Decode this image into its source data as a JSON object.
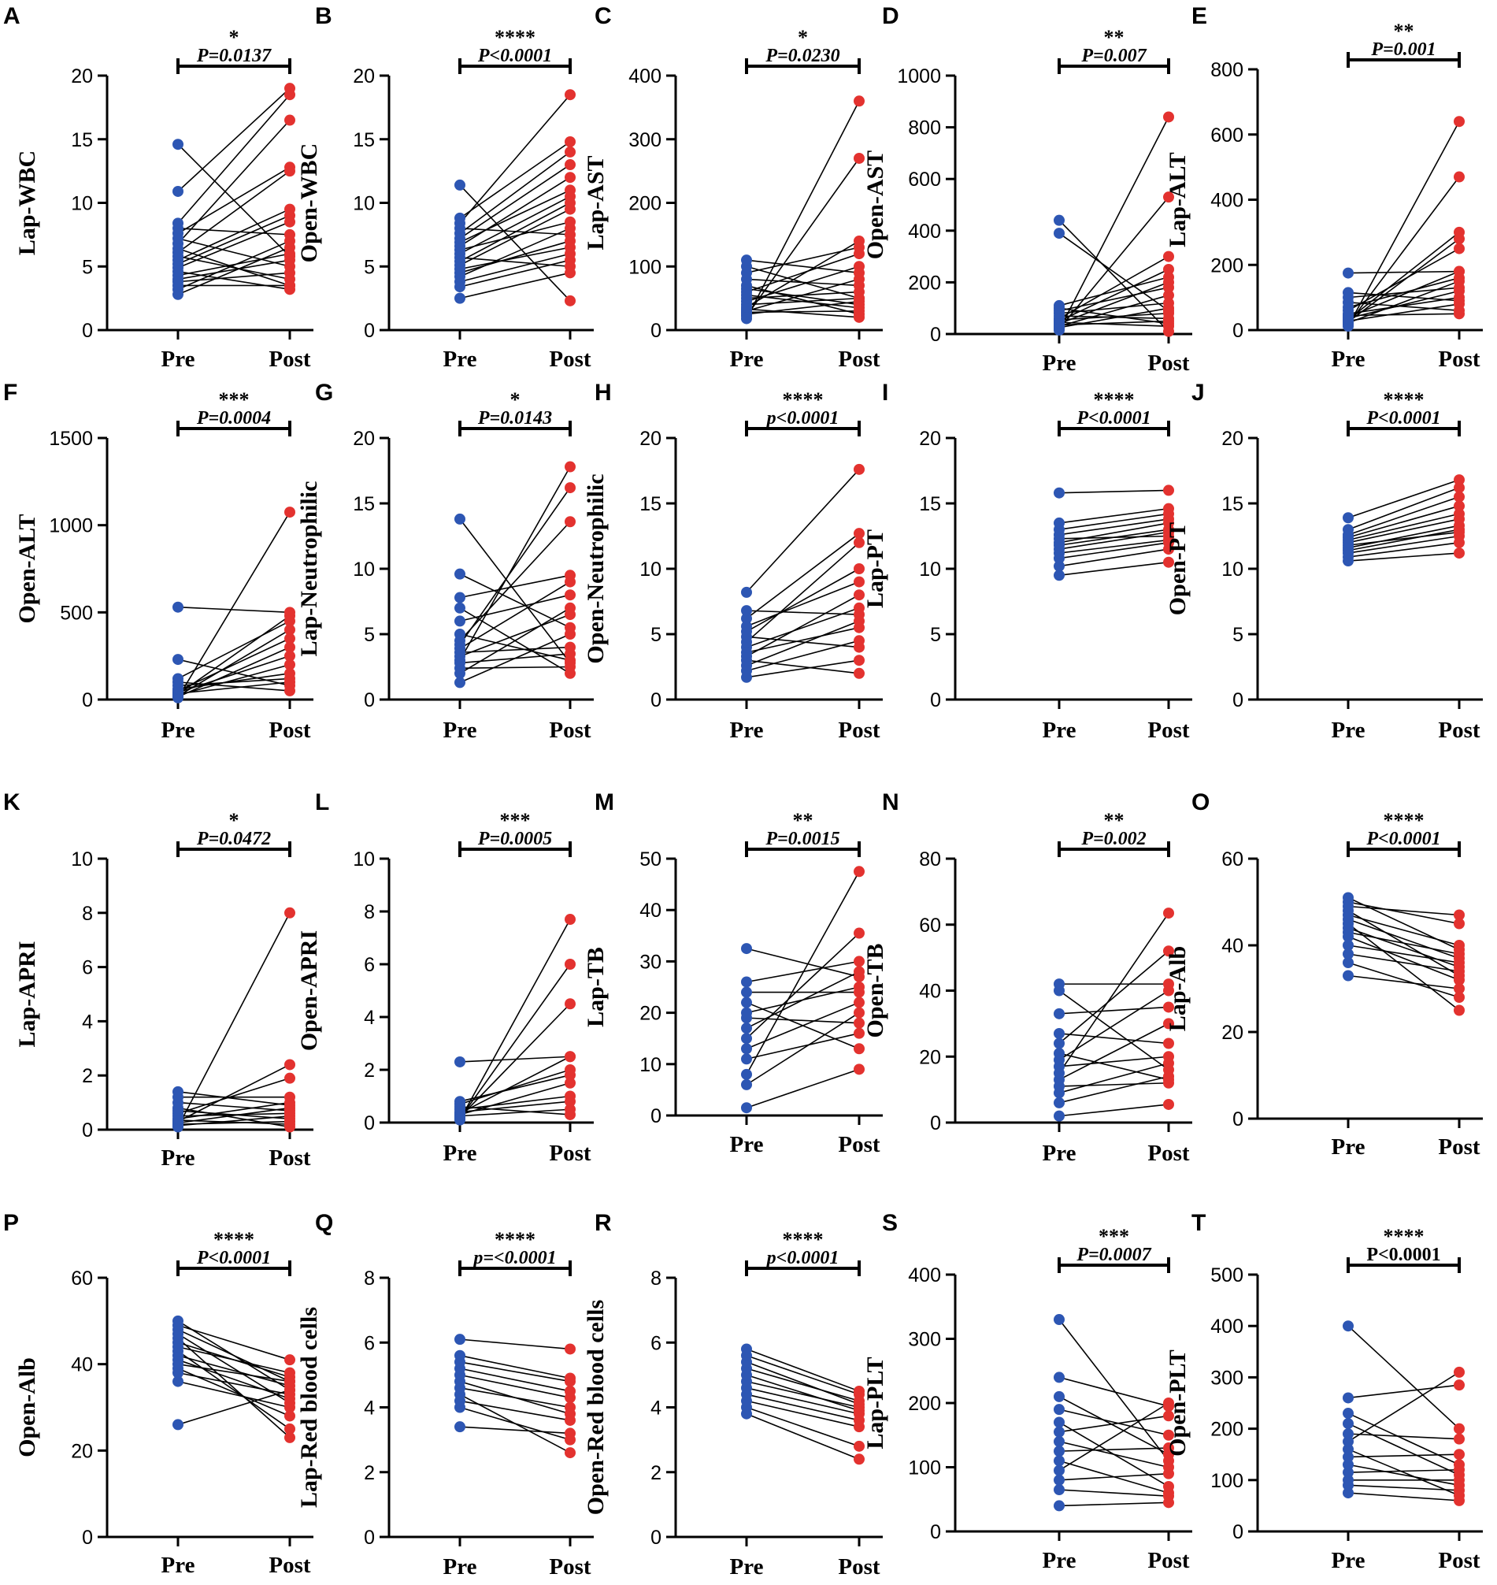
{
  "colors": {
    "pre": "#2d56b3",
    "post": "#e3322f",
    "axis": "#000000",
    "line": "#000000"
  },
  "chart_data": [
    {
      "panel": "A",
      "type": "scatter",
      "ylabel": "Lap-WBC",
      "categories": [
        "Pre",
        "Post"
      ],
      "ylim": [
        0,
        20
      ],
      "yticks": [
        0,
        5,
        10,
        15,
        20
      ],
      "stars": "*",
      "pvalue": "P=0.0137",
      "pre": [
        2.8,
        3.2,
        3.5,
        3.8,
        4.0,
        4.3,
        4.6,
        4.9,
        5.2,
        5.5,
        5.8,
        6.1,
        6.4,
        6.8,
        7.2,
        7.6,
        8.0,
        8.4,
        10.9,
        14.6
      ],
      "post": [
        6.5,
        7.0,
        3.5,
        4.5,
        5.5,
        6.0,
        3.2,
        8.5,
        9.0,
        9.5,
        4.0,
        12.5,
        3.5,
        16.5,
        5.0,
        12.8,
        7.5,
        18.5,
        19.0,
        5.8
      ]
    },
    {
      "panel": "B",
      "type": "scatter",
      "ylabel": "Open-WBC",
      "categories": [
        "Pre",
        "Post"
      ],
      "ylim": [
        0,
        20
      ],
      "yticks": [
        0,
        5,
        10,
        15,
        20
      ],
      "stars": "****",
      "pvalue": "P<0.0001",
      "pre": [
        2.5,
        3.4,
        3.8,
        4.2,
        4.5,
        4.8,
        5.1,
        5.4,
        5.7,
        6.0,
        6.3,
        6.6,
        6.9,
        7.2,
        7.6,
        8.0,
        8.4,
        8.8,
        11.4
      ],
      "post": [
        4.5,
        5.5,
        6.0,
        8.0,
        7.0,
        6.5,
        9.5,
        10.0,
        5.0,
        10.5,
        8.5,
        12.0,
        11.0,
        13.0,
        14.0,
        7.5,
        18.5,
        14.8,
        2.3
      ]
    },
    {
      "panel": "C",
      "type": "scatter",
      "ylabel": "Lap-AST",
      "categories": [
        "Pre",
        "Post"
      ],
      "ylim": [
        0,
        400
      ],
      "yticks": [
        0,
        100,
        200,
        300,
        400
      ],
      "stars": "*",
      "pvalue": "P=0.0230",
      "pre": [
        18,
        22,
        25,
        28,
        30,
        33,
        36,
        40,
        45,
        50,
        55,
        60,
        65,
        70,
        80,
        90,
        100,
        110
      ],
      "post": [
        360,
        270,
        45,
        30,
        80,
        20,
        140,
        50,
        100,
        60,
        35,
        120,
        40,
        25,
        70,
        130,
        50,
        90
      ]
    },
    {
      "panel": "D",
      "type": "scatter",
      "ylabel": "Open-AST",
      "categories": [
        "Pre",
        "Post"
      ],
      "ylim": [
        0,
        1000
      ],
      "yticks": [
        0,
        200,
        400,
        600,
        800,
        1000
      ],
      "stars": "**",
      "pvalue": "P=0.007",
      "pre": [
        15,
        20,
        25,
        30,
        35,
        40,
        45,
        50,
        55,
        60,
        70,
        80,
        90,
        100,
        110,
        390,
        440
      ],
      "post": [
        840,
        530,
        100,
        150,
        50,
        200,
        30,
        250,
        80,
        300,
        60,
        120,
        180,
        40,
        220,
        90,
        10
      ]
    },
    {
      "panel": "E",
      "type": "scatter",
      "ylabel": "Lap-ALT",
      "categories": [
        "Pre",
        "Post"
      ],
      "ylim": [
        0,
        800
      ],
      "yticks": [
        0,
        200,
        400,
        600,
        800
      ],
      "stars": "**",
      "pvalue": "P=0.001",
      "pre": [
        12,
        18,
        22,
        25,
        28,
        32,
        36,
        40,
        45,
        50,
        60,
        70,
        85,
        100,
        115,
        175
      ],
      "post": [
        640,
        470,
        150,
        280,
        80,
        300,
        120,
        180,
        50,
        100,
        250,
        160,
        60,
        130,
        90,
        180
      ]
    },
    {
      "panel": "F",
      "type": "scatter",
      "ylabel": "Open-ALT",
      "categories": [
        "Pre",
        "Post"
      ],
      "ylim": [
        0,
        1500
      ],
      "yticks": [
        0,
        500,
        1000,
        1500
      ],
      "stars": "***",
      "pvalue": "P=0.0004",
      "pre": [
        10,
        15,
        20,
        25,
        30,
        35,
        40,
        50,
        60,
        80,
        100,
        120,
        230,
        530
      ],
      "post": [
        1075,
        300,
        400,
        200,
        480,
        100,
        250,
        350,
        150,
        120,
        50,
        450,
        80,
        500
      ]
    },
    {
      "panel": "G",
      "type": "scatter",
      "ylabel": "Lap-Neutrophilic",
      "categories": [
        "Pre",
        "Post"
      ],
      "ylim": [
        0,
        20
      ],
      "yticks": [
        0,
        5,
        10,
        15,
        20
      ],
      "stars": "*",
      "pvalue": "P=0.0143",
      "pre": [
        1.3,
        2.0,
        2.4,
        2.8,
        3.0,
        3.3,
        3.6,
        3.9,
        4.2,
        4.5,
        5.0,
        6.0,
        7.0,
        7.8,
        9.6,
        13.8
      ],
      "post": [
        5.0,
        7.0,
        2.5,
        3.5,
        17.8,
        6.5,
        4.0,
        9.0,
        16.2,
        13.6,
        3.0,
        8.0,
        2.0,
        9.5,
        5.5,
        2.8
      ]
    },
    {
      "panel": "H",
      "type": "scatter",
      "ylabel": "Open-Neutrophilic",
      "categories": [
        "Pre",
        "Post"
      ],
      "ylim": [
        0,
        20
      ],
      "yticks": [
        0,
        5,
        10,
        15,
        20
      ],
      "stars": "****",
      "pvalue": "p<0.0001",
      "pre": [
        1.7,
        2.2,
        2.6,
        3.0,
        3.3,
        3.6,
        4.0,
        4.4,
        4.8,
        5.2,
        5.6,
        6.2,
        6.8,
        8.2
      ],
      "post": [
        3.0,
        4.5,
        6.0,
        2.0,
        8.0,
        5.5,
        7.0,
        12.0,
        4.0,
        10.0,
        9.0,
        12.7,
        6.5,
        17.6
      ]
    },
    {
      "panel": "I",
      "type": "scatter",
      "ylabel": "Lap-PT",
      "categories": [
        "Pre",
        "Post"
      ],
      "ylim": [
        0,
        20
      ],
      "yticks": [
        0,
        5,
        10,
        15,
        20
      ],
      "stars": "****",
      "pvalue": "P<0.0001",
      "pre": [
        9.5,
        10.2,
        10.8,
        11.2,
        11.5,
        11.8,
        12.0,
        12.3,
        12.6,
        13.0,
        13.5,
        15.8
      ],
      "post": [
        10.5,
        11.5,
        12.0,
        12.2,
        12.8,
        13.0,
        13.5,
        12.5,
        13.8,
        14.2,
        14.6,
        16.0
      ]
    },
    {
      "panel": "J",
      "type": "scatter",
      "ylabel": "Open-PT",
      "categories": [
        "Pre",
        "Post"
      ],
      "ylim": [
        0,
        20
      ],
      "yticks": [
        0,
        5,
        10,
        15,
        20
      ],
      "stars": "****",
      "pvalue": "P<0.0001",
      "pre": [
        10.6,
        10.9,
        11.2,
        11.4,
        11.6,
        11.8,
        12.0,
        12.2,
        12.4,
        12.6,
        13.0,
        13.9
      ],
      "post": [
        11.2,
        12.0,
        12.5,
        13.0,
        13.3,
        12.8,
        13.8,
        14.2,
        14.8,
        15.5,
        16.2,
        16.8
      ]
    },
    {
      "panel": "K",
      "type": "scatter",
      "ylabel": "Lap-APRI",
      "categories": [
        "Pre",
        "Post"
      ],
      "ylim": [
        0,
        10
      ],
      "yticks": [
        0,
        2,
        4,
        6,
        8,
        10
      ],
      "stars": "*",
      "pvalue": "P=0.0472",
      "pre": [
        0.1,
        0.15,
        0.2,
        0.25,
        0.3,
        0.35,
        0.4,
        0.5,
        0.6,
        0.7,
        0.8,
        1.0,
        1.2,
        1.4
      ],
      "post": [
        8.0,
        0.5,
        0.3,
        0.8,
        2.4,
        0.2,
        1.0,
        0.6,
        1.9,
        0.4,
        0.1,
        0.7,
        1.2,
        0.9
      ]
    },
    {
      "panel": "L",
      "type": "scatter",
      "ylabel": "Open-APRI",
      "categories": [
        "Pre",
        "Post"
      ],
      "ylim": [
        0,
        10
      ],
      "yticks": [
        0,
        2,
        4,
        6,
        8,
        10
      ],
      "stars": "***",
      "pvalue": "P=0.0005",
      "pre": [
        0.1,
        0.15,
        0.2,
        0.25,
        0.3,
        0.35,
        0.4,
        0.5,
        0.6,
        0.7,
        0.8,
        2.3
      ],
      "post": [
        7.7,
        6.0,
        4.5,
        0.5,
        1.5,
        2.5,
        0.8,
        1.0,
        0.3,
        2.0,
        1.8,
        2.5
      ]
    },
    {
      "panel": "M",
      "type": "scatter",
      "ylabel": "Lap-TB",
      "categories": [
        "Pre",
        "Post"
      ],
      "ylim": [
        0,
        50
      ],
      "yticks": [
        0,
        10,
        20,
        30,
        40,
        50
      ],
      "stars": "**",
      "pvalue": "P=0.0015",
      "pre": [
        1.5,
        6.0,
        8.0,
        11.0,
        13.0,
        15.0,
        17.0,
        19.0,
        20.0,
        22.0,
        24.0,
        26.0,
        32.5
      ],
      "post": [
        9.0,
        20.0,
        47.5,
        16.0,
        22.0,
        35.5,
        28.0,
        18.0,
        25.0,
        13.0,
        24.0,
        30.0,
        27.0
      ]
    },
    {
      "panel": "N",
      "type": "scatter",
      "ylabel": "Open-TB",
      "categories": [
        "Pre",
        "Post"
      ],
      "ylim": [
        0,
        80
      ],
      "yticks": [
        0,
        20,
        40,
        60,
        80
      ],
      "stars": "**",
      "pvalue": "P=0.002",
      "pre": [
        2.0,
        6.0,
        9.0,
        11.0,
        13.0,
        15.0,
        17.0,
        19.0,
        21.0,
        24.0,
        27.0,
        33.0,
        40.0,
        42.0
      ],
      "post": [
        5.5,
        14.0,
        18.0,
        12.0,
        30.0,
        63.5,
        20.0,
        40.0,
        13.0,
        52.0,
        24.0,
        35.0,
        16.0,
        42.0
      ]
    },
    {
      "panel": "O",
      "type": "scatter",
      "ylabel": "Lap-Alb",
      "categories": [
        "Pre",
        "Post"
      ],
      "ylim": [
        0,
        60
      ],
      "yticks": [
        0,
        20,
        40,
        60
      ],
      "stars": "****",
      "pvalue": "P<0.0001",
      "pre": [
        33,
        36,
        38,
        40,
        42,
        43,
        44,
        45,
        46,
        47,
        48,
        49,
        50,
        51
      ],
      "post": [
        30,
        28,
        34,
        36,
        32,
        38,
        35,
        25,
        37,
        40,
        33,
        47,
        45,
        39
      ]
    },
    {
      "panel": "P",
      "type": "scatter",
      "ylabel": "Open-Alb",
      "categories": [
        "Pre",
        "Post"
      ],
      "ylim": [
        0,
        60
      ],
      "yticks": [
        0,
        20,
        40,
        60
      ],
      "stars": "****",
      "pvalue": "P<0.0001",
      "pre": [
        26,
        36,
        38,
        39,
        40,
        41,
        42,
        43,
        44,
        45,
        46,
        47,
        48,
        49,
        50
      ],
      "post": [
        34,
        30,
        33,
        28,
        36,
        32,
        35,
        25,
        38,
        37,
        23,
        31,
        36,
        41,
        34
      ]
    },
    {
      "panel": "Q",
      "type": "scatter",
      "ylabel": "Lap-Red blood cells",
      "categories": [
        "Pre",
        "Post"
      ],
      "ylim": [
        0,
        8
      ],
      "yticks": [
        0,
        2,
        4,
        6,
        8
      ],
      "stars": "****",
      "pvalue": "p=<0.0001",
      "pre": [
        3.4,
        4.0,
        4.2,
        4.4,
        4.6,
        4.8,
        5.0,
        5.2,
        5.4,
        5.6,
        6.1
      ],
      "post": [
        3.2,
        3.0,
        3.6,
        2.6,
        4.0,
        3.8,
        4.3,
        4.5,
        4.8,
        4.9,
        5.8
      ]
    },
    {
      "panel": "R",
      "type": "scatter",
      "ylabel": "Open-Red blood cells",
      "categories": [
        "Pre",
        "Post"
      ],
      "ylim": [
        0,
        8
      ],
      "yticks": [
        0,
        2,
        4,
        6,
        8
      ],
      "stars": "****",
      "pvalue": "p<0.0001",
      "pre": [
        3.8,
        4.0,
        4.2,
        4.4,
        4.6,
        4.8,
        5.0,
        5.2,
        5.4,
        5.6,
        5.8
      ],
      "post": [
        2.4,
        2.8,
        3.4,
        3.6,
        3.8,
        4.0,
        3.9,
        4.2,
        4.1,
        4.4,
        4.5
      ]
    },
    {
      "panel": "S",
      "type": "scatter",
      "ylabel": "Lap-PLT",
      "categories": [
        "Pre",
        "Post"
      ],
      "ylim": [
        0,
        400
      ],
      "yticks": [
        0,
        100,
        200,
        300,
        400
      ],
      "stars": "***",
      "pvalue": "P=0.0007",
      "pre": [
        40,
        65,
        80,
        95,
        110,
        125,
        140,
        155,
        170,
        190,
        210,
        240,
        330
      ],
      "post": [
        45,
        55,
        90,
        200,
        60,
        130,
        100,
        180,
        70,
        150,
        120,
        195,
        110
      ]
    },
    {
      "panel": "T",
      "type": "scatter",
      "ylabel": "Open-PLT",
      "categories": [
        "Pre",
        "Post"
      ],
      "ylim": [
        0,
        500
      ],
      "yticks": [
        0,
        100,
        200,
        300,
        400,
        500
      ],
      "stars": "****",
      "pvalue": "P<0.0001",
      "pre": [
        75,
        90,
        100,
        115,
        130,
        145,
        160,
        175,
        190,
        210,
        230,
        260,
        400
      ],
      "post": [
        60,
        80,
        100,
        120,
        90,
        150,
        70,
        310,
        180,
        110,
        130,
        285,
        200
      ]
    }
  ]
}
